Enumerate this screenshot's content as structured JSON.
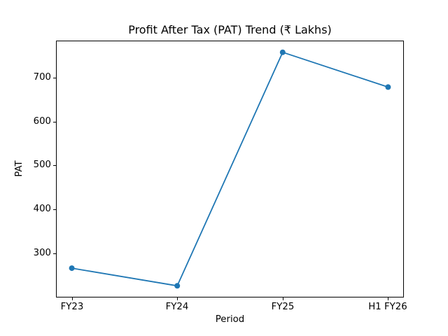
{
  "chart_data": {
    "type": "line",
    "title": "Profit After Tax (PAT) Trend (₹ Lakhs)",
    "xlabel": "Period",
    "ylabel": "PAT",
    "categories": [
      "FY23",
      "FY24",
      "FY25",
      "H1 FY26"
    ],
    "values": [
      267,
      227,
      757,
      678
    ],
    "yticks": [
      300,
      400,
      500,
      600,
      700
    ],
    "ylim": [
      200.5,
      783.5
    ],
    "grid": false,
    "legend": "none",
    "line_color": "#1f77b4",
    "marker": "circle",
    "background_color": "#ffffff",
    "text_color": "#000000"
  }
}
